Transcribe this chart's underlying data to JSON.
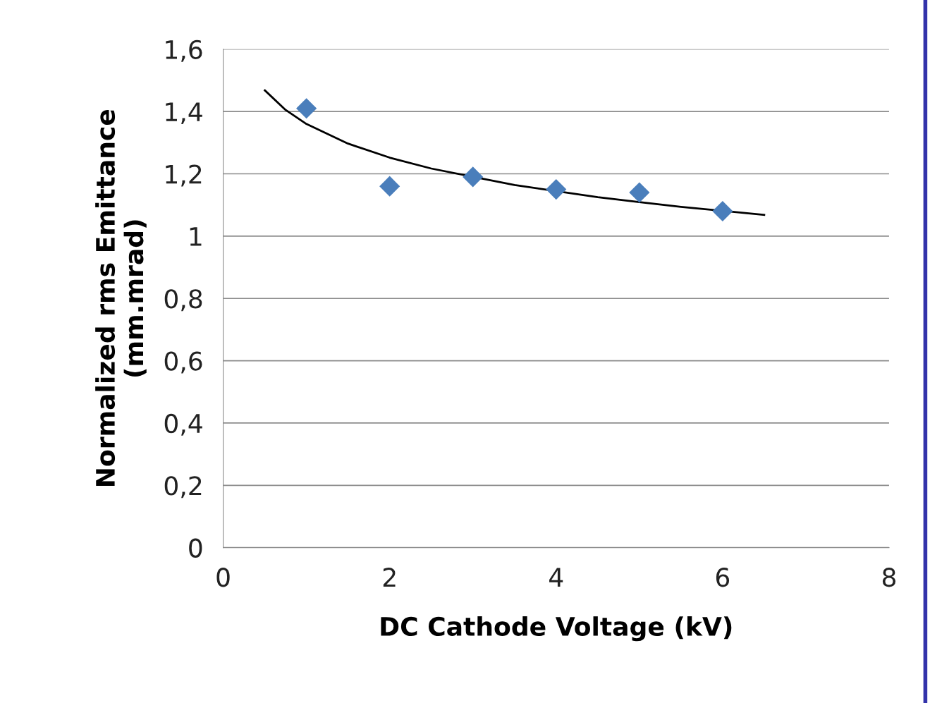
{
  "chart_data": {
    "type": "scatter",
    "xlabel": "DC Cathode Voltage (kV)",
    "ylabel": "Normalized rms Emittance\n(mm.mrad)",
    "series": [
      {
        "color": "#4a7ebb",
        "marker": "diamond",
        "x": [
          1,
          2,
          3,
          4,
          5,
          6
        ],
        "values": [
          1.41,
          1.16,
          1.19,
          1.15,
          1.14,
          1.08
        ]
      },
      {
        "type": "line",
        "color": "#000000",
        "marker": "none",
        "line_style": "solid",
        "x": [
          0.5,
          0.75,
          1,
          1.5,
          2,
          2.5,
          3.5,
          4.5,
          5,
          5.5,
          6.5
        ],
        "values": [
          1.468,
          1.405,
          1.36,
          1.297,
          1.252,
          1.217,
          1.164,
          1.125,
          1.109,
          1.094,
          1.068
        ]
      }
    ],
    "xlim": [
      0,
      8
    ],
    "xticks": [
      0,
      2,
      4,
      6,
      8
    ],
    "ylim": [
      0,
      1.6
    ],
    "yticks": [
      0,
      {
        "value": 0.2,
        "label": "0,2"
      },
      {
        "value": 0.4,
        "label": "0,4"
      },
      {
        "value": 0.6,
        "label": "0,6"
      },
      {
        "value": 0.8,
        "label": "0,8"
      },
      1,
      {
        "value": 1.2,
        "label": "1,2"
      },
      {
        "value": 1.4,
        "label": "1,4"
      },
      {
        "value": 1.6,
        "label": "1,6"
      }
    ],
    "grid": "y",
    "legend": false
  }
}
